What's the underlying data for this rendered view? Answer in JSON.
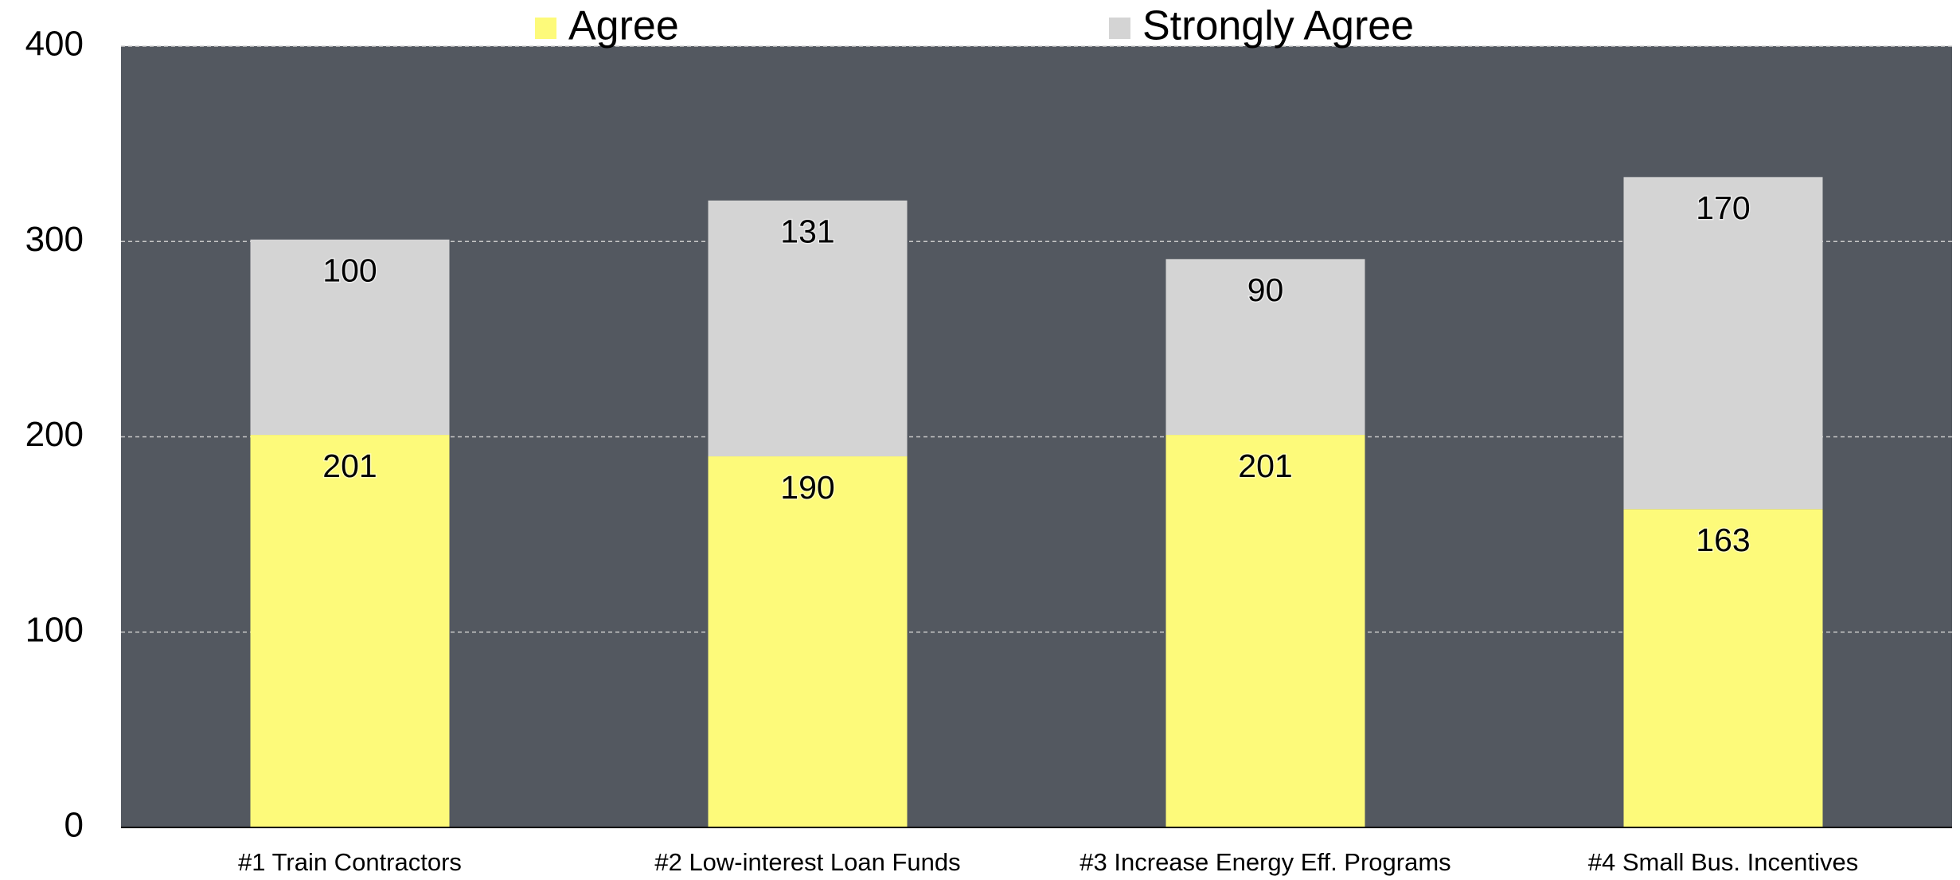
{
  "chart_data": {
    "type": "stacked-bar",
    "categories": [
      "#1 Train Contractors",
      "#2 Low-interest Loan Funds",
      "#3 Increase Energy Eff. Programs",
      "#4 Small Bus. Incentives"
    ],
    "series": [
      {
        "name": "Agree",
        "color": "#fdfa7a",
        "values": [
          201,
          190,
          201,
          163
        ]
      },
      {
        "name": "Strongly Agree",
        "color": "#d4d4d4",
        "values": [
          100,
          131,
          90,
          170
        ]
      }
    ],
    "ylim": [
      0,
      400
    ],
    "yticks": [
      0,
      100,
      200,
      300,
      400
    ],
    "grid": true,
    "legend": "top"
  }
}
